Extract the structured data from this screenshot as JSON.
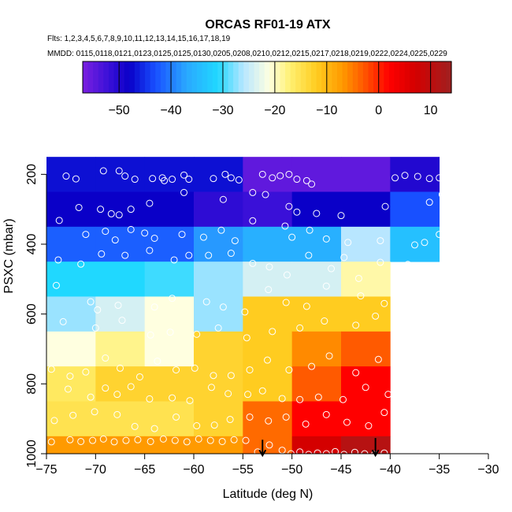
{
  "chart_data": {
    "type": "heatmap",
    "title": "ORCAS RF01-19 ATX",
    "flights_line": "Flts: 1,2,3,4,5,6,7,8,9,10,11,12,13,14,15,16,17,18,19",
    "dates_line": "MMDD: 0115,0118,0121,0123,0125,0125,0130,0205,0208,0210,0212,0215,0217,0218,0219,0222,0224,0225,0229",
    "xlabel": "Latitude (deg N)",
    "ylabel": "PSXC (mbar)",
    "xlim": [
      -75,
      -30
    ],
    "ylim": [
      1000,
      100
    ],
    "xticks": [
      -75,
      -70,
      -65,
      -60,
      -55,
      -50,
      -45,
      -40,
      -35,
      -30
    ],
    "yticks": [
      200,
      400,
      600,
      800,
      1000
    ],
    "colorbar": {
      "range": [
        -57,
        14
      ],
      "ticks": [
        -50,
        -40,
        -30,
        -20,
        -10,
        0,
        10
      ],
      "stops": [
        {
          "v": -57,
          "c": "#7a1fe0"
        },
        {
          "v": -52,
          "c": "#3a10d8"
        },
        {
          "v": -48,
          "c": "#0a00c8"
        },
        {
          "v": -43,
          "c": "#1850ff"
        },
        {
          "v": -37,
          "c": "#2aa8ff"
        },
        {
          "v": -31,
          "c": "#20d8ff"
        },
        {
          "v": -26,
          "c": "#b8e6ff"
        },
        {
          "v": -21,
          "c": "#ffffe0"
        },
        {
          "v": -17,
          "c": "#fff070"
        },
        {
          "v": -12,
          "c": "#ffcc20"
        },
        {
          "v": -7,
          "c": "#ff9a00"
        },
        {
          "v": -3,
          "c": "#ff5a00"
        },
        {
          "v": 2,
          "c": "#ff0000"
        },
        {
          "v": 7,
          "c": "#d40000"
        },
        {
          "v": 14,
          "c": "#a02020"
        }
      ]
    },
    "lat_bins": [
      -75,
      -70,
      -65,
      -60,
      -55,
      -50,
      -45,
      -40,
      -35
    ],
    "pres_bins": [
      150,
      250,
      350,
      450,
      550,
      650,
      750,
      850,
      950,
      1000
    ],
    "grid_values": [
      [
        -47,
        -47,
        -47,
        -47,
        -55,
        -55,
        -55,
        -50
      ],
      [
        -48,
        -48,
        -48,
        -51,
        -52,
        -48,
        -48,
        -43
      ],
      [
        -42,
        -42,
        -42,
        -38,
        -36,
        -36,
        -26,
        -34
      ],
      [
        -31,
        -31,
        -30,
        -27,
        -24,
        -24,
        -19,
        null
      ],
      [
        -27,
        -24,
        -21,
        -27,
        -12,
        -12,
        -12,
        null
      ],
      [
        -21,
        -18,
        -21,
        -13,
        -12,
        -6,
        -3,
        null
      ],
      [
        -16,
        -13,
        -13,
        -13,
        -12,
        -3,
        2,
        null
      ],
      [
        -15,
        -15,
        -15,
        -13,
        -4,
        2,
        2,
        null
      ],
      [
        -7,
        -7,
        -7,
        -7,
        -4,
        7,
        11,
        null
      ]
    ],
    "observations": [
      [
        -73,
        205
      ],
      [
        -72,
        213
      ],
      [
        -69.2,
        190
      ],
      [
        -67.6,
        190
      ],
      [
        -67,
        205
      ],
      [
        -66,
        214
      ],
      [
        -64.2,
        212
      ],
      [
        -63.2,
        210
      ],
      [
        -63,
        218
      ],
      [
        -62.2,
        214
      ],
      [
        -61,
        202
      ],
      [
        -60.5,
        214
      ],
      [
        -58,
        212
      ],
      [
        -56.8,
        200
      ],
      [
        -56.2,
        210
      ],
      [
        -55.4,
        216
      ],
      [
        -53,
        200
      ],
      [
        -52,
        210
      ],
      [
        -51.2,
        204
      ],
      [
        -50.3,
        200
      ],
      [
        -49.5,
        214
      ],
      [
        -48.5,
        218
      ],
      [
        -48,
        228
      ],
      [
        -39.5,
        210
      ],
      [
        -38.5,
        203
      ],
      [
        -37.2,
        206
      ],
      [
        -36,
        212
      ],
      [
        -35,
        210
      ],
      [
        -34,
        208
      ],
      [
        -33,
        206
      ],
      [
        -32,
        206
      ],
      [
        -31,
        206
      ],
      [
        -71.7,
        295
      ],
      [
        -69.5,
        300
      ],
      [
        -68.4,
        313
      ],
      [
        -67.6,
        316
      ],
      [
        -66.4,
        300
      ],
      [
        -64.5,
        283
      ],
      [
        -61,
        252
      ],
      [
        -57,
        272
      ],
      [
        -54,
        252
      ],
      [
        -52.7,
        258
      ],
      [
        -50.3,
        292
      ],
      [
        -49.5,
        308
      ],
      [
        -47.5,
        312
      ],
      [
        -45,
        318
      ],
      [
        -40.5,
        292
      ],
      [
        -36,
        280
      ],
      [
        -34.7,
        258
      ],
      [
        -73.7,
        332
      ],
      [
        -71,
        372
      ],
      [
        -69,
        363
      ],
      [
        -68,
        388
      ],
      [
        -66.4,
        358
      ],
      [
        -65,
        368
      ],
      [
        -64,
        383
      ],
      [
        -61.2,
        372
      ],
      [
        -59,
        380
      ],
      [
        -57.2,
        360
      ],
      [
        -55.8,
        390
      ],
      [
        -54,
        333
      ],
      [
        -50.7,
        348
      ],
      [
        -50,
        380
      ],
      [
        -48.2,
        360
      ],
      [
        -46.5,
        385
      ],
      [
        -44.3,
        395
      ],
      [
        -41,
        390
      ],
      [
        -37.5,
        402
      ],
      [
        -36.5,
        395
      ],
      [
        -35,
        372
      ],
      [
        -33.5,
        358
      ],
      [
        -73.8,
        445
      ],
      [
        -71.5,
        457
      ],
      [
        -69.4,
        428
      ],
      [
        -67,
        432
      ],
      [
        -64.5,
        418
      ],
      [
        -62,
        445
      ],
      [
        -60.5,
        432
      ],
      [
        -58.5,
        432
      ],
      [
        -56.2,
        426
      ],
      [
        -54,
        455
      ],
      [
        -52.3,
        465
      ],
      [
        -50.5,
        488
      ],
      [
        -48.3,
        432
      ],
      [
        -46,
        470
      ],
      [
        -44.7,
        438
      ],
      [
        -43.2,
        498
      ],
      [
        -41,
        452
      ],
      [
        -38.2,
        458
      ],
      [
        -35.8,
        475
      ],
      [
        -74,
        518
      ],
      [
        -70.5,
        565
      ],
      [
        -69.8,
        588
      ],
      [
        -67.7,
        575
      ],
      [
        -64,
        580
      ],
      [
        -62.2,
        555
      ],
      [
        -58.7,
        565
      ],
      [
        -57,
        580
      ],
      [
        -54.8,
        594
      ],
      [
        -52.4,
        530
      ],
      [
        -50.6,
        567
      ],
      [
        -48.5,
        578
      ],
      [
        -46.5,
        520
      ],
      [
        -43,
        548
      ],
      [
        -40.6,
        570
      ],
      [
        -37.2,
        598
      ],
      [
        -35,
        542
      ],
      [
        -73.3,
        622
      ],
      [
        -70,
        640
      ],
      [
        -67.3,
        618
      ],
      [
        -64.4,
        660
      ],
      [
        -62.4,
        652
      ],
      [
        -59.7,
        658
      ],
      [
        -57.5,
        640
      ],
      [
        -54.6,
        668
      ],
      [
        -52,
        650
      ],
      [
        -49.2,
        640
      ],
      [
        -46.7,
        620
      ],
      [
        -43.5,
        632
      ],
      [
        -41.5,
        606
      ],
      [
        -39.5,
        645
      ],
      [
        -37,
        615
      ],
      [
        -35.5,
        632
      ],
      [
        -74.5,
        758
      ],
      [
        -72.6,
        778
      ],
      [
        -71,
        766
      ],
      [
        -69,
        726
      ],
      [
        -67.5,
        755
      ],
      [
        -65.5,
        780
      ],
      [
        -63.7,
        735
      ],
      [
        -61.8,
        760
      ],
      [
        -59.9,
        755
      ],
      [
        -58,
        776
      ],
      [
        -56.2,
        776
      ],
      [
        -54.3,
        760
      ],
      [
        -52.5,
        732
      ],
      [
        -50.3,
        760
      ],
      [
        -48,
        750
      ],
      [
        -46.2,
        720
      ],
      [
        -43.5,
        768
      ],
      [
        -41.2,
        730
      ],
      [
        -39,
        730
      ],
      [
        -36.6,
        752
      ],
      [
        -72.8,
        815
      ],
      [
        -70.5,
        838
      ],
      [
        -69,
        812
      ],
      [
        -67.8,
        830
      ],
      [
        -66.4,
        808
      ],
      [
        -64.5,
        843
      ],
      [
        -62.2,
        840
      ],
      [
        -60.4,
        848
      ],
      [
        -58.2,
        810
      ],
      [
        -56.5,
        828
      ],
      [
        -54.5,
        830
      ],
      [
        -53,
        820
      ],
      [
        -51,
        842
      ],
      [
        -49.2,
        845
      ],
      [
        -47.3,
        838
      ],
      [
        -44.8,
        845
      ],
      [
        -42.5,
        810
      ],
      [
        -40.2,
        830
      ],
      [
        -38.3,
        808
      ],
      [
        -35.4,
        826
      ],
      [
        -74.2,
        905
      ],
      [
        -72.3,
        890
      ],
      [
        -70.1,
        880
      ],
      [
        -67.8,
        888
      ],
      [
        -66,
        922
      ],
      [
        -64,
        928
      ],
      [
        -61.8,
        895
      ],
      [
        -59.7,
        920
      ],
      [
        -57.9,
        918
      ],
      [
        -56.3,
        902
      ],
      [
        -54.3,
        895
      ],
      [
        -52.4,
        906
      ],
      [
        -50.6,
        895
      ],
      [
        -48.6,
        915
      ],
      [
        -46.5,
        888
      ],
      [
        -44.4,
        910
      ],
      [
        -42.2,
        920
      ],
      [
        -40.6,
        882
      ],
      [
        -38.5,
        932
      ],
      [
        -74.5,
        966
      ],
      [
        -72.6,
        960
      ],
      [
        -71.5,
        965
      ],
      [
        -70.3,
        962
      ],
      [
        -69.2,
        958
      ],
      [
        -68.1,
        966
      ],
      [
        -66.9,
        962
      ],
      [
        -65.7,
        960
      ],
      [
        -64.4,
        965
      ],
      [
        -63.1,
        958
      ],
      [
        -61.9,
        962
      ],
      [
        -60.7,
        966
      ],
      [
        -59.5,
        958
      ],
      [
        -58.3,
        962
      ],
      [
        -57.1,
        965
      ],
      [
        -55.9,
        960
      ],
      [
        -54.7,
        962
      ],
      [
        -53.5,
        995
      ],
      [
        -52.3,
        975
      ],
      [
        -51,
        990
      ],
      [
        -50.1,
        1000
      ],
      [
        -49.2,
        995
      ],
      [
        -48.3,
        1002
      ],
      [
        -47.4,
        998
      ],
      [
        -46.5,
        1000
      ],
      [
        -45.6,
        994
      ],
      [
        -44.7,
        1002
      ],
      [
        -43.6,
        996
      ],
      [
        -42.6,
        1000
      ],
      [
        -41.6,
        1002
      ],
      [
        -40.6,
        998
      ],
      [
        -39.6,
        990
      ],
      [
        -38.6,
        1000
      ],
      [
        -37.6,
        994
      ],
      [
        -36.6,
        998
      ]
    ],
    "arrows": [
      {
        "lat": -53,
        "p_top": 960,
        "p_bottom": 1005
      },
      {
        "lat": -41.5,
        "p_top": 955,
        "p_bottom": 1005
      }
    ]
  }
}
